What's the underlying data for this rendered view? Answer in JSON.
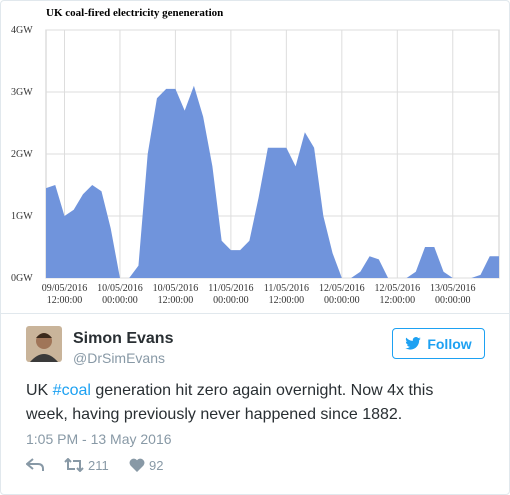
{
  "chart_data": {
    "type": "area",
    "title": "UK coal-fired electricity geneneration",
    "x": [
      "2016-05-09T08:00",
      "2016-05-09T10:00",
      "2016-05-09T12:00",
      "2016-05-09T14:00",
      "2016-05-09T16:00",
      "2016-05-09T18:00",
      "2016-05-09T20:00",
      "2016-05-09T22:00",
      "2016-05-10T00:00",
      "2016-05-10T02:00",
      "2016-05-10T04:00",
      "2016-05-10T06:00",
      "2016-05-10T08:00",
      "2016-05-10T10:00",
      "2016-05-10T12:00",
      "2016-05-10T14:00",
      "2016-05-10T16:00",
      "2016-05-10T18:00",
      "2016-05-10T20:00",
      "2016-05-10T22:00",
      "2016-05-11T00:00",
      "2016-05-11T02:00",
      "2016-05-11T04:00",
      "2016-05-11T06:00",
      "2016-05-11T08:00",
      "2016-05-11T10:00",
      "2016-05-11T12:00",
      "2016-05-11T14:00",
      "2016-05-11T16:00",
      "2016-05-11T18:00",
      "2016-05-11T20:00",
      "2016-05-11T22:00",
      "2016-05-12T00:00",
      "2016-05-12T02:00",
      "2016-05-12T04:00",
      "2016-05-12T06:00",
      "2016-05-12T08:00",
      "2016-05-12T10:00",
      "2016-05-12T12:00",
      "2016-05-12T14:00",
      "2016-05-12T16:00",
      "2016-05-12T18:00",
      "2016-05-12T20:00",
      "2016-05-12T22:00",
      "2016-05-13T00:00",
      "2016-05-13T02:00",
      "2016-05-13T04:00",
      "2016-05-13T06:00",
      "2016-05-13T08:00",
      "2016-05-13T10:00"
    ],
    "values": [
      1.45,
      1.5,
      1.0,
      1.1,
      1.35,
      1.5,
      1.4,
      0.8,
      0,
      0,
      0.2,
      2.0,
      2.9,
      3.05,
      3.05,
      2.7,
      3.1,
      2.6,
      1.8,
      0.6,
      0.45,
      0.45,
      0.6,
      1.3,
      2.1,
      2.1,
      2.1,
      1.8,
      2.35,
      2.1,
      1.0,
      0.4,
      0,
      0,
      0.1,
      0.35,
      0.3,
      0,
      0,
      0,
      0.1,
      0.5,
      0.5,
      0.1,
      0,
      0,
      0,
      0.05,
      0.35,
      0.35
    ],
    "color": "#7094dc",
    "xlim": [
      "2016-05-09T08:00",
      "2016-05-13T10:00"
    ],
    "xticks": [
      {
        "value": "2016-05-09T12:00",
        "label": "09/05/2016 12:00:00"
      },
      {
        "value": "2016-05-10T00:00",
        "label": "10/05/2016 00:00:00"
      },
      {
        "value": "2016-05-10T12:00",
        "label": "10/05/2016 12:00:00"
      },
      {
        "value": "2016-05-11T00:00",
        "label": "11/05/2016 00:00:00"
      },
      {
        "value": "2016-05-11T12:00",
        "label": "11/05/2016 12:00:00"
      },
      {
        "value": "2016-05-12T00:00",
        "label": "12/05/2016 00:00:00"
      },
      {
        "value": "2016-05-12T12:00",
        "label": "12/05/2016 12:00:00"
      },
      {
        "value": "2016-05-13T00:00",
        "label": "13/05/2016 00:00:00"
      }
    ],
    "ylim": [
      0,
      4
    ],
    "yticks": [
      {
        "value": 0,
        "label": "0GW"
      },
      {
        "value": 1,
        "label": "1GW"
      },
      {
        "value": 2,
        "label": "2GW"
      },
      {
        "value": 3,
        "label": "3GW"
      },
      {
        "value": 4,
        "label": "4GW"
      }
    ],
    "grid": true
  },
  "tweet": {
    "name": "Simon Evans",
    "handle": "@DrSimEvans",
    "follow": "Follow",
    "text": [
      "UK ",
      "#coal",
      " generation hit zero again overnight. Now 4x this week, having previously never happened since 1882."
    ],
    "timestamp": "1:05 PM - 13 May 2016",
    "retweets": "211",
    "likes": "92"
  }
}
